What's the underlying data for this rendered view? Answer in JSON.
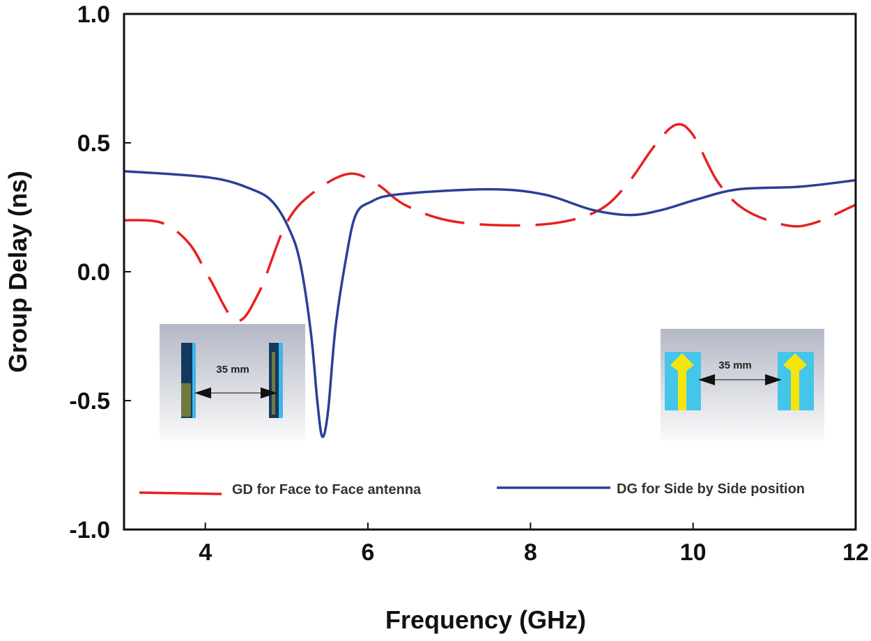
{
  "chart_data": {
    "type": "line",
    "title": "",
    "xlabel": "Frequency (GHz)",
    "ylabel": "Group Delay (ns)",
    "xlim": [
      3,
      12
    ],
    "ylim": [
      -1.0,
      1.0
    ],
    "xticks": [
      4,
      6,
      8,
      10,
      12
    ],
    "xtick_labels": [
      "4",
      "6",
      "8",
      "10",
      "12"
    ],
    "yticks": [
      1.0,
      0.5,
      0.0,
      -0.5,
      -1.0
    ],
    "ytick_labels": [
      "1.0",
      "0.5",
      "0.0",
      "-0.5",
      "-1.0"
    ],
    "grid": false,
    "legend_position": "bottom",
    "series": [
      {
        "name": "GD for Face to Face antenna",
        "color": "#e8201f",
        "style": "dashed",
        "x": [
          3.0,
          3.46,
          3.8,
          4.06,
          4.38,
          4.66,
          5.0,
          5.34,
          5.77,
          6.11,
          6.45,
          6.97,
          7.65,
          8.33,
          8.85,
          9.19,
          9.53,
          9.79,
          10.0,
          10.3,
          10.64,
          11.15,
          11.5,
          12.0
        ],
        "y": [
          0.2,
          0.19,
          0.11,
          -0.03,
          -0.19,
          -0.08,
          0.19,
          0.31,
          0.38,
          0.34,
          0.26,
          0.2,
          0.18,
          0.19,
          0.24,
          0.34,
          0.49,
          0.57,
          0.53,
          0.35,
          0.24,
          0.18,
          0.19,
          0.26
        ]
      },
      {
        "name": "DG for Side by Side position",
        "color": "#2a3f97",
        "style": "solid",
        "x": [
          3.0,
          4.06,
          4.57,
          4.83,
          5.04,
          5.17,
          5.3,
          5.38,
          5.44,
          5.51,
          5.6,
          5.73,
          5.85,
          6.03,
          6.37,
          7.48,
          8.16,
          8.76,
          9.23,
          9.62,
          10.04,
          10.56,
          11.32,
          12.0
        ],
        "y": [
          0.39,
          0.365,
          0.32,
          0.27,
          0.16,
          0.03,
          -0.24,
          -0.51,
          -0.64,
          -0.54,
          -0.22,
          0.05,
          0.22,
          0.27,
          0.3,
          0.32,
          0.3,
          0.24,
          0.22,
          0.24,
          0.28,
          0.32,
          0.33,
          0.355
        ]
      }
    ],
    "annotations": [
      {
        "label": "35 mm",
        "context": "face-to-face inset"
      },
      {
        "label": "35 mm",
        "context": "side-by-side inset"
      }
    ]
  }
}
